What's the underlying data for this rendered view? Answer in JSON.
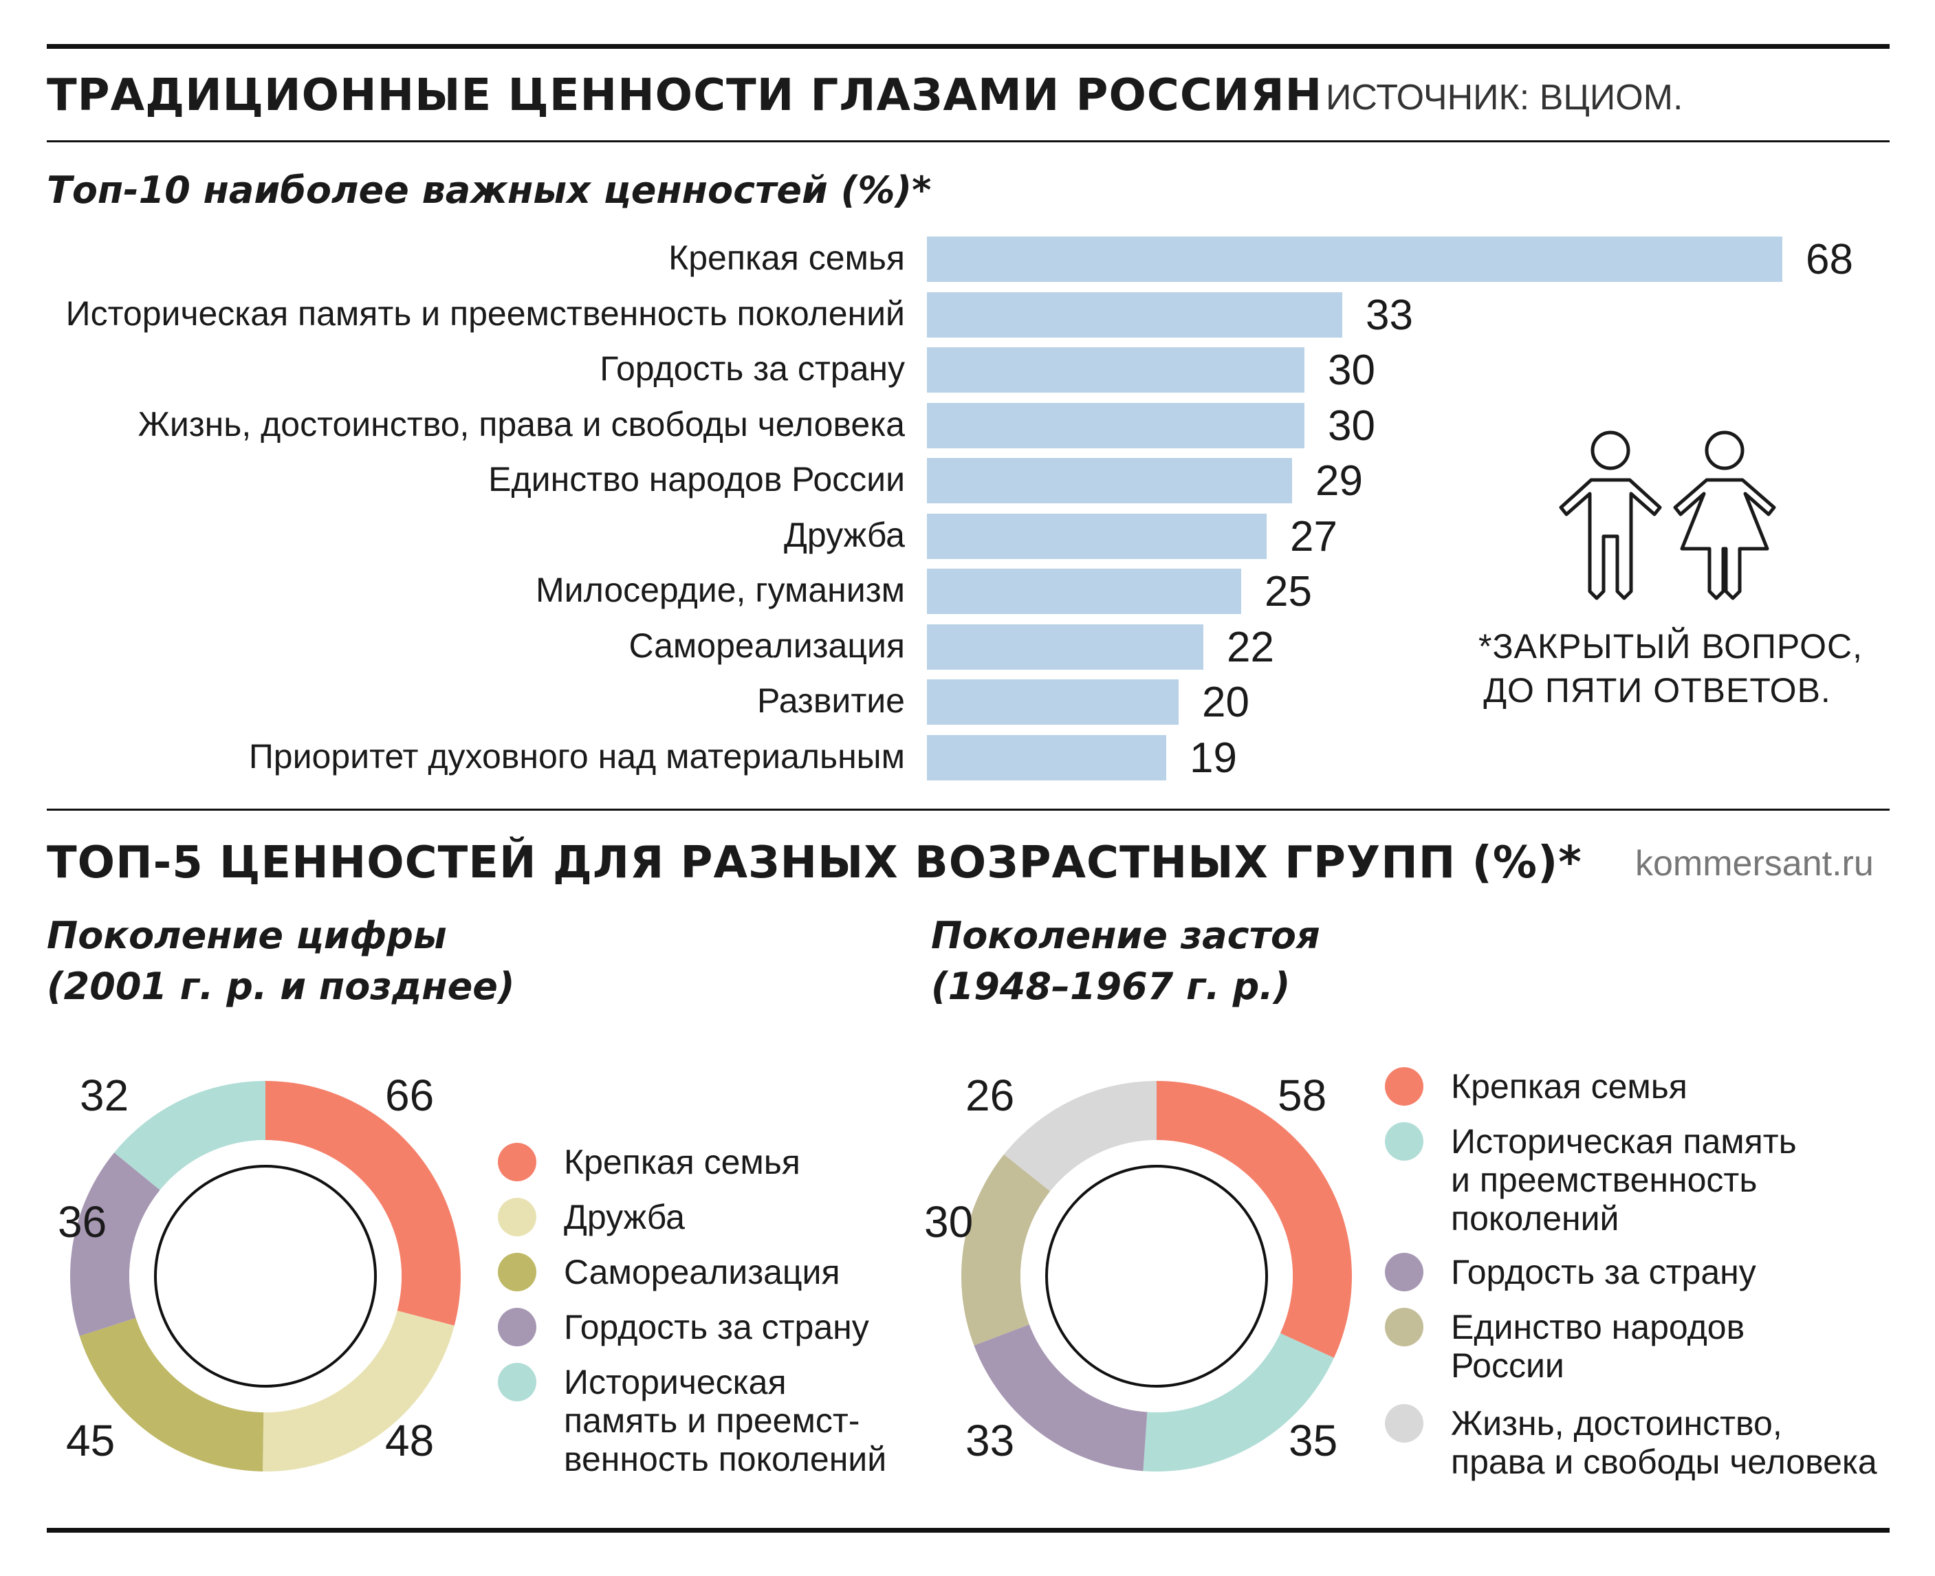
{
  "header": {
    "title": "ТРАДИЦИОННЫЕ ЦЕННОСТИ ГЛАЗАМИ РОССИЯН",
    "source": "ИСТОЧНИК: ВЦИОМ."
  },
  "top10": {
    "subtitle": "Топ-10 наиболее важных ценностей (%)*",
    "note_line1": "*ЗАКРЫТЫЙ ВОПРОС,",
    "note_line2": "ДО ПЯТИ ОТВЕТОВ."
  },
  "section2": {
    "title": "ТОП-5 ЦЕННОСТЕЙ ДЛЯ РАЗНЫХ ВОЗРАСТНЫХ ГРУПП (%)*",
    "credit": "kommersant.ru"
  },
  "chart_data": [
    {
      "type": "bar",
      "orientation": "horizontal",
      "title": "Топ-10 наиболее важных ценностей (%)*",
      "categories": [
        "Крепкая семья",
        "Историческая память и преемственность поколений",
        "Гордость за страну",
        "Жизнь, достоинство, права и свободы человека",
        "Единство народов России",
        "Дружба",
        "Милосердие, гуманизм",
        "Самореализация",
        "Развитие",
        "Приоритет духовного над материальным"
      ],
      "values": [
        68,
        33,
        30,
        30,
        29,
        27,
        25,
        22,
        20,
        19
      ],
      "color": "#b9d2e7",
      "xlim": [
        0,
        68
      ],
      "grid": false
    },
    {
      "type": "pie",
      "variant": "donut",
      "title_line1": "Поколение цифры",
      "title_line2": "(2001 г. р. и позднее)",
      "categories": [
        "Крепкая семья",
        "Дружба",
        "Самореализация",
        "Гордость за страну",
        "Историческая память и преемственность поколений"
      ],
      "legend_labels": [
        "Крепкая семья",
        "Дружба",
        "Самореализация",
        "Гордость за страну",
        "Историческая\nпамять и преемст-\nвенность поколений"
      ],
      "values": [
        66,
        48,
        45,
        36,
        32
      ],
      "colors": [
        "#f5806a",
        "#e8e2b3",
        "#bfb866",
        "#a697b3",
        "#b0ddd6"
      ],
      "legend_position": "right"
    },
    {
      "type": "pie",
      "variant": "donut",
      "title_line1": "Поколение застоя",
      "title_line2": "(1948–1967 г. р.)",
      "categories": [
        "Крепкая семья",
        "Историческая память и преемственность поколений",
        "Гордость за страну",
        "Единство народов России",
        "Жизнь, достоинство, права и свободы человека"
      ],
      "legend_labels": [
        "Крепкая семья",
        "Историческая память\nи преемственность\nпоколений",
        "Гордость за страну",
        "Единство народов\nРоссии",
        "Жизнь, достоинство,\nправа и свободы человека"
      ],
      "values": [
        58,
        35,
        33,
        30,
        26
      ],
      "colors": [
        "#f5806a",
        "#b0ddd6",
        "#a697b3",
        "#c3bd98",
        "#d8d8d8"
      ],
      "legend_position": "right"
    }
  ]
}
